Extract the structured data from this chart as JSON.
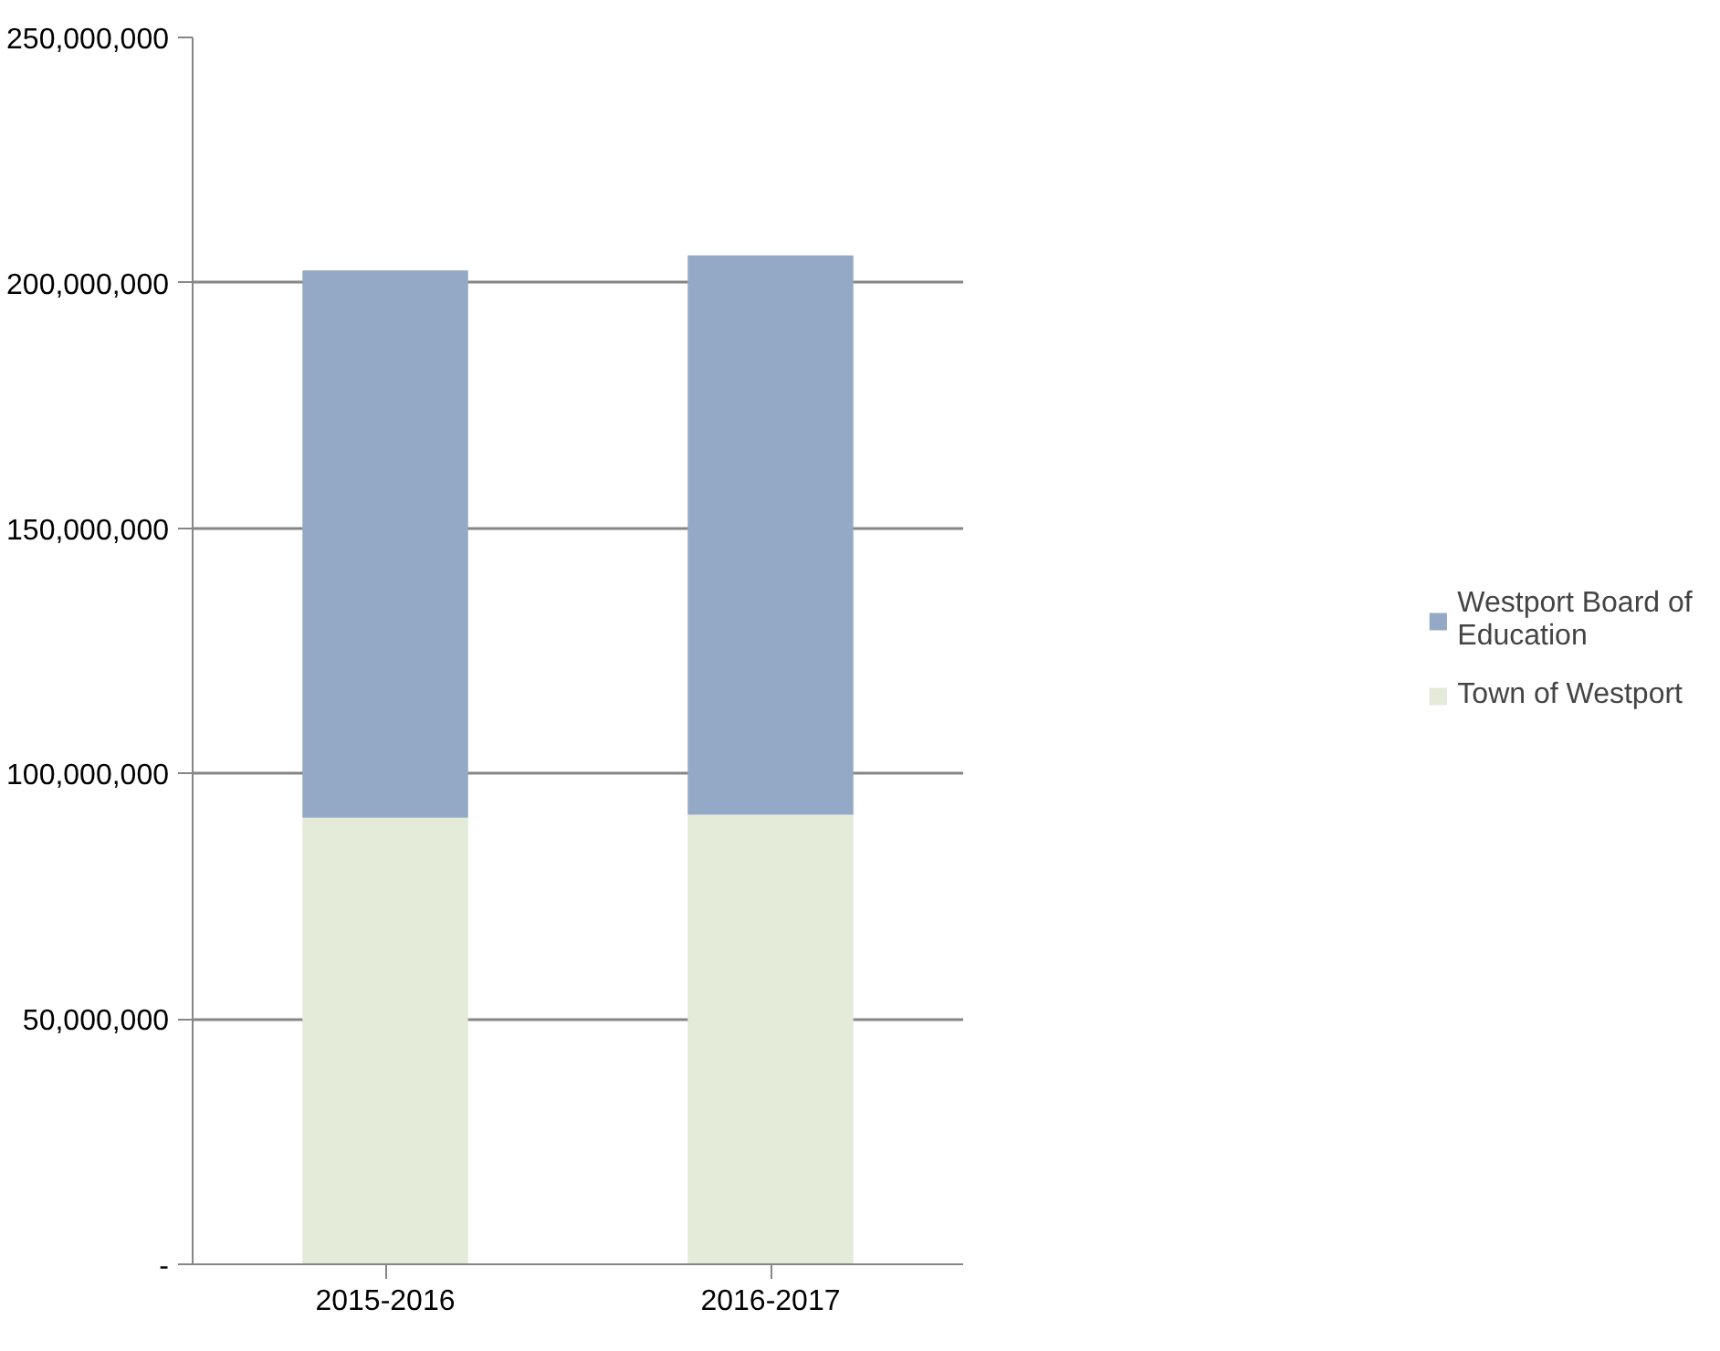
{
  "chart_data": {
    "type": "bar",
    "stacked": true,
    "categories": [
      "2015-2016",
      "2016-2017"
    ],
    "series": [
      {
        "name": "Town of Westport",
        "color": "#e4ebd9",
        "values": [
          91000000,
          91600000
        ]
      },
      {
        "name": "Westport Board of Education",
        "color": "#93a9c6",
        "values": [
          111500000,
          114000000
        ]
      }
    ],
    "ylim": [
      0,
      250000000
    ],
    "yticks": [
      {
        "value": 0,
        "label": "-"
      },
      {
        "value": 50000000,
        "label": "50,000,000"
      },
      {
        "value": 100000000,
        "label": "100,000,000"
      },
      {
        "value": 150000000,
        "label": "150,000,000"
      },
      {
        "value": 200000000,
        "label": "200,000,000"
      },
      {
        "value": 250000000,
        "label": "250,000,000"
      }
    ],
    "grid": "y",
    "legend": "right"
  }
}
